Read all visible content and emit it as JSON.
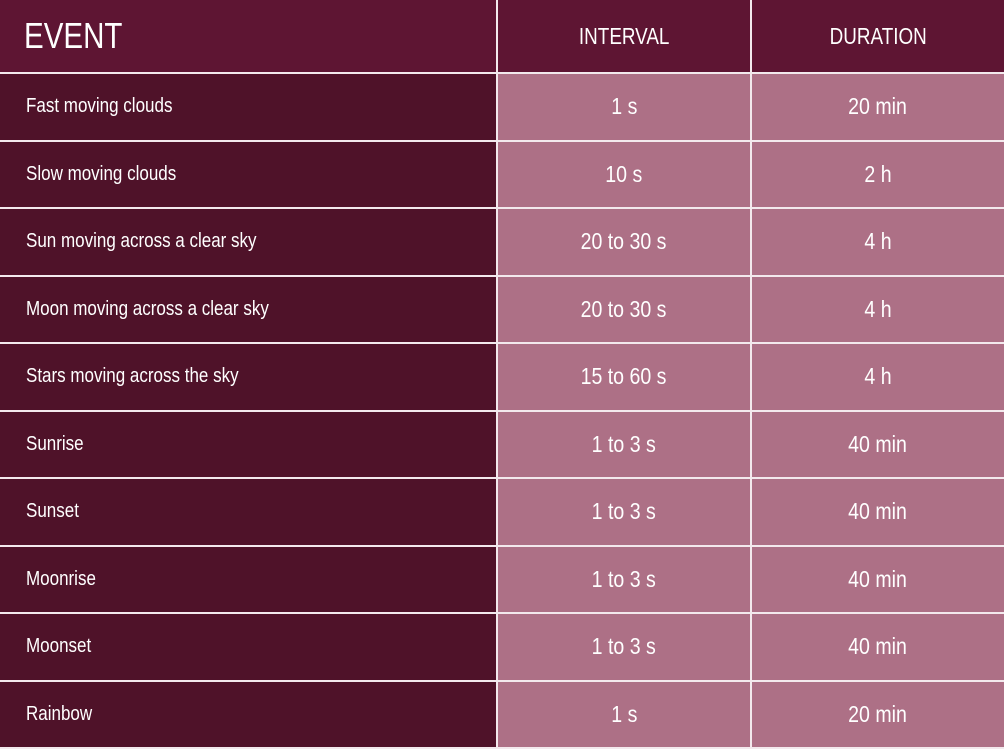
{
  "headers": {
    "event": "EVENT",
    "interval": "INTERVAL",
    "duration": "DURATION"
  },
  "rows": [
    {
      "event": "Fast moving clouds",
      "interval": "1 s",
      "duration": "20 min"
    },
    {
      "event": "Slow moving clouds",
      "interval": "10 s",
      "duration": "2 h"
    },
    {
      "event": "Sun moving across a clear sky",
      "interval": "20 to 30 s",
      "duration": "4 h"
    },
    {
      "event": "Moon moving across a clear sky",
      "interval": "20 to 30 s",
      "duration": "4 h"
    },
    {
      "event": "Stars moving across the sky",
      "interval": "15 to 60 s",
      "duration": "4 h"
    },
    {
      "event": "Sunrise",
      "interval": "1 to 3 s",
      "duration": "40 min"
    },
    {
      "event": "Sunset",
      "interval": "1 to 3 s",
      "duration": "40 min"
    },
    {
      "event": "Moonrise",
      "interval": "1 to 3 s",
      "duration": "40 min"
    },
    {
      "event": "Moonset",
      "interval": "1 to 3 s",
      "duration": "40 min"
    },
    {
      "event": "Rainbow",
      "interval": "1 s",
      "duration": "20 min"
    }
  ],
  "colors": {
    "header": "#5e1533",
    "event_column": "#4f1229",
    "value_cells": "#ad7086",
    "grid": "#f3e9ed"
  }
}
